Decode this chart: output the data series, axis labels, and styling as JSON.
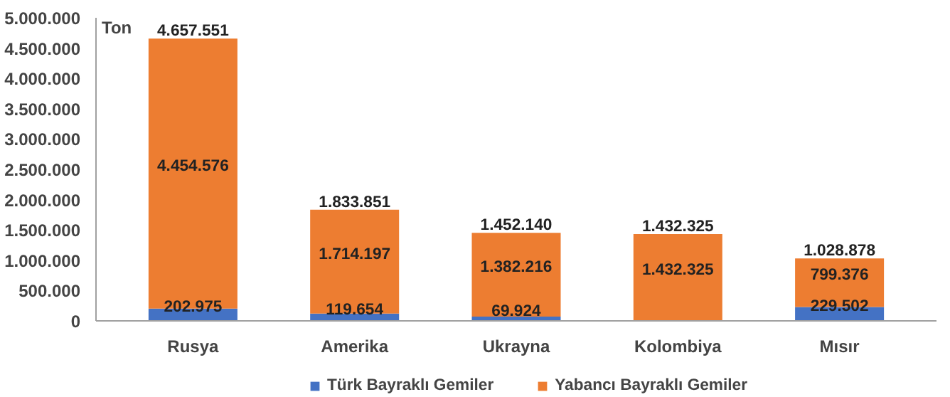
{
  "chart_data": {
    "type": "bar",
    "stacked": true,
    "ylabel": "Ton",
    "categories": [
      "Rusya",
      "Amerika",
      "Ukrayna",
      "Kolombiya",
      "Mısır"
    ],
    "series": [
      {
        "name": "Türk Bayraklı Gemiler",
        "color": "#4472c4",
        "values": [
          202975,
          119654,
          69924,
          0,
          229502
        ],
        "value_labels": [
          "202.975",
          "119.654",
          "69.924",
          null,
          "229.502"
        ]
      },
      {
        "name": "Yabancı Bayraklı Gemiler",
        "color": "#ed7d31",
        "values": [
          4454576,
          1714197,
          1382216,
          1432325,
          799376
        ],
        "value_labels": [
          "4.454.576",
          "1.714.197",
          "1.382.216",
          "1.432.325",
          "799.376"
        ]
      }
    ],
    "totals": [
      "4.657.551",
      "1.833.851",
      "1.452.140",
      "1.432.325",
      "1.028.878"
    ],
    "ylim": [
      0,
      5000000
    ],
    "yticks": [
      {
        "value": 0,
        "label": "0"
      },
      {
        "value": 500000,
        "label": "500.000"
      },
      {
        "value": 1000000,
        "label": "1.000.000"
      },
      {
        "value": 1500000,
        "label": "1.500.000"
      },
      {
        "value": 2000000,
        "label": "2.000.000"
      },
      {
        "value": 2500000,
        "label": "2.500.000"
      },
      {
        "value": 3000000,
        "label": "3.000.000"
      },
      {
        "value": 3500000,
        "label": "3.500.000"
      },
      {
        "value": 4000000,
        "label": "4.000.000"
      },
      {
        "value": 4500000,
        "label": "4.500.000"
      },
      {
        "value": 5000000,
        "label": "5.000.000"
      }
    ],
    "grid": false,
    "legend": "bottom"
  }
}
